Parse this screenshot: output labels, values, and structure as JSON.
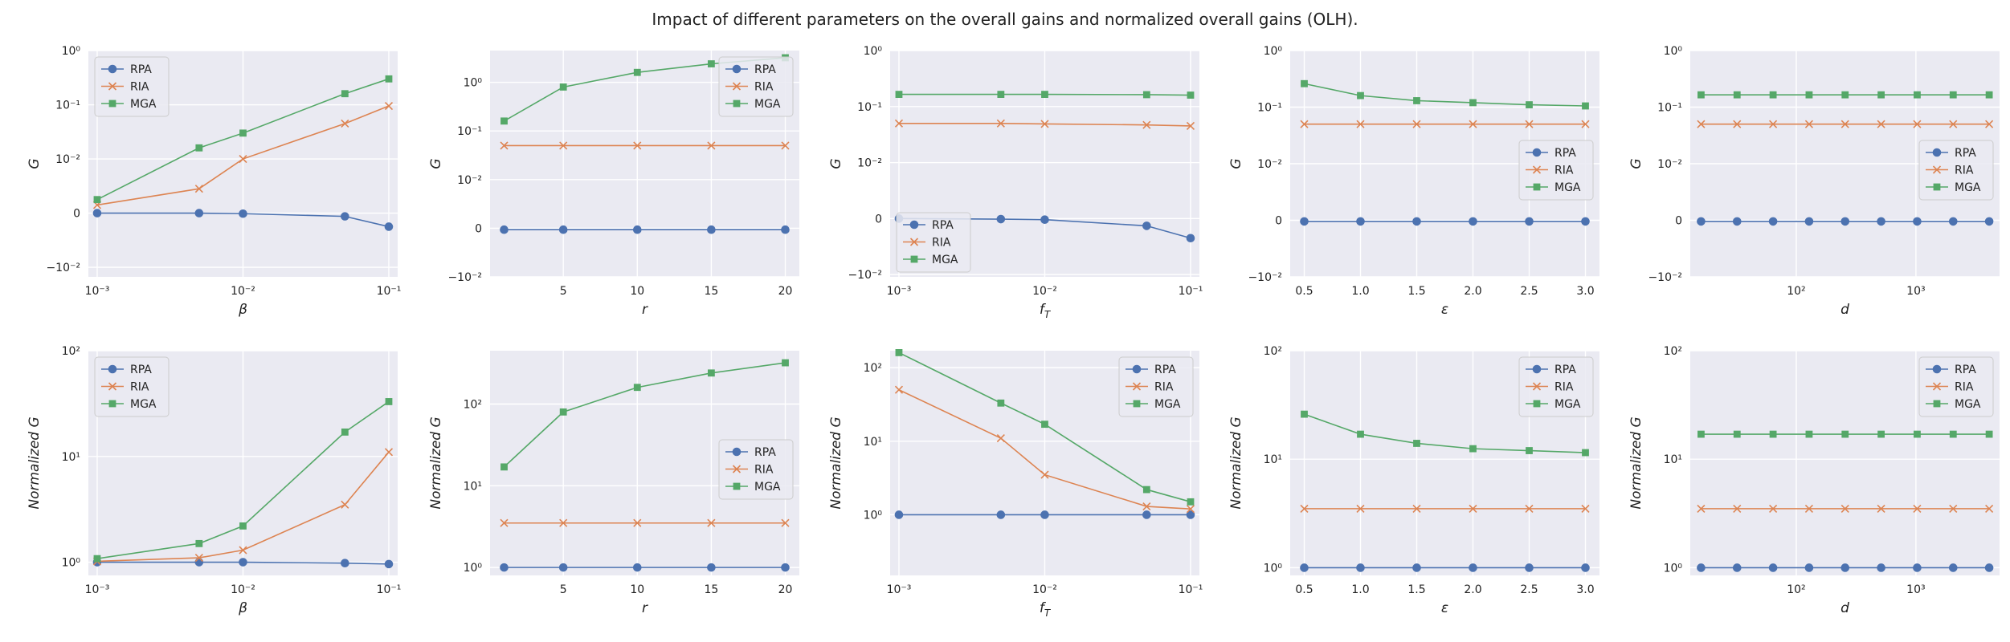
{
  "figure_title": "Impact of different parameters on the overall gains and normalized overall gains (OLH).",
  "colors": {
    "RPA": "#4c72b0",
    "RIA": "#dd8452",
    "MGA": "#55a868"
  },
  "chart_data": [
    {
      "type": "line",
      "xscale": "log",
      "yscale": "symlog",
      "xlabel": "β",
      "ylabel": "G",
      "x": [
        0.001,
        0.005,
        0.01,
        0.05,
        0.1
      ],
      "xticks": [
        0.001,
        0.01,
        0.1
      ],
      "xticklabels": [
        "10⁻³",
        "10⁻²",
        "10⁻¹"
      ],
      "xlim": [
        0.00087,
        0.115
      ],
      "yticks": [
        -0.01,
        0,
        0.01,
        0.1,
        1
      ],
      "yticklabels": [
        "−10⁻²",
        "0",
        "10⁻²",
        "10⁻¹",
        "10⁰"
      ],
      "ylim": [
        -0.015,
        1.0
      ],
      "legend": "upper left",
      "series": [
        {
          "name": "RPA",
          "marker": "circle",
          "values": [
            0.0,
            0.0,
            -0.0001,
            -0.0006,
            -0.0025
          ]
        },
        {
          "name": "RIA",
          "marker": "x",
          "values": [
            0.0015,
            0.0045,
            0.01,
            0.045,
            0.095
          ]
        },
        {
          "name": "MGA",
          "marker": "square",
          "values": [
            0.0025,
            0.016,
            0.03,
            0.16,
            0.3
          ]
        }
      ]
    },
    {
      "type": "line",
      "xscale": "linear",
      "yscale": "symlog",
      "xlabel": "r",
      "ylabel": "G",
      "x": [
        1,
        5,
        10,
        15,
        20
      ],
      "xticks": [
        5,
        10,
        15,
        20
      ],
      "xticklabels": [
        "5",
        "10",
        "15",
        "20"
      ],
      "xlim": [
        0.05,
        20.95
      ],
      "yticks": [
        -0.01,
        0,
        0.01,
        0.1,
        1
      ],
      "yticklabels": [
        "−10⁻²",
        "0",
        "10⁻²",
        "10⁻¹",
        "10⁰"
      ],
      "ylim": [
        -0.01,
        4.5
      ],
      "legend": "upper right",
      "series": [
        {
          "name": "RPA",
          "marker": "circle",
          "values": [
            -0.0003,
            -0.0003,
            -0.0003,
            -0.0003,
            -0.0003
          ]
        },
        {
          "name": "RIA",
          "marker": "x",
          "values": [
            0.05,
            0.05,
            0.05,
            0.05,
            0.05
          ]
        },
        {
          "name": "MGA",
          "marker": "square",
          "values": [
            0.16,
            0.8,
            1.6,
            2.4,
            3.2
          ]
        }
      ]
    },
    {
      "type": "line",
      "xscale": "log",
      "yscale": "symlog",
      "xlabel": "f_T",
      "ylabel": "G",
      "x": [
        0.001,
        0.005,
        0.01,
        0.05,
        0.1
      ],
      "xticks": [
        0.001,
        0.01,
        0.1
      ],
      "xticklabels": [
        "10⁻³",
        "10⁻²",
        "10⁻¹"
      ],
      "xlim": [
        0.00087,
        0.115
      ],
      "yticks": [
        -0.01,
        0,
        0.01,
        0.1,
        1
      ],
      "yticklabels": [
        "−10⁻²",
        "0",
        "10⁻²",
        "10⁻¹",
        "10⁰"
      ],
      "ylim": [
        -0.011,
        1.0
      ],
      "legend": "lower left",
      "series": [
        {
          "name": "RPA",
          "marker": "circle",
          "values": [
            0.0,
            -0.0001,
            -0.0002,
            -0.0013,
            -0.0035
          ]
        },
        {
          "name": "RIA",
          "marker": "x",
          "values": [
            0.05,
            0.05,
            0.049,
            0.047,
            0.045
          ]
        },
        {
          "name": "MGA",
          "marker": "square",
          "values": [
            0.165,
            0.165,
            0.165,
            0.163,
            0.16
          ]
        }
      ]
    },
    {
      "type": "line",
      "xscale": "linear",
      "yscale": "symlog",
      "xlabel": "ε",
      "ylabel": "G",
      "x": [
        0.5,
        1.0,
        1.5,
        2.0,
        2.5,
        3.0
      ],
      "xticks": [
        0.5,
        1.0,
        1.5,
        2.0,
        2.5,
        3.0
      ],
      "xticklabels": [
        "0.5",
        "1.0",
        "1.5",
        "2.0",
        "2.5",
        "3.0"
      ],
      "xlim": [
        0.375,
        3.125
      ],
      "yticks": [
        -0.01,
        0,
        0.01,
        0.1,
        1
      ],
      "yticklabels": [
        "−10⁻²",
        "0",
        "10⁻²",
        "10⁻¹",
        "10⁰"
      ],
      "ylim": [
        -0.01,
        1.0
      ],
      "legend": "center right",
      "series": [
        {
          "name": "RPA",
          "marker": "circle",
          "values": [
            -0.0002,
            -0.0002,
            -0.0002,
            -0.0002,
            -0.0002,
            -0.0002
          ]
        },
        {
          "name": "RIA",
          "marker": "x",
          "values": [
            0.05,
            0.05,
            0.05,
            0.05,
            0.05,
            0.05
          ]
        },
        {
          "name": "MGA",
          "marker": "square",
          "values": [
            0.26,
            0.16,
            0.13,
            0.12,
            0.11,
            0.105
          ]
        }
      ]
    },
    {
      "type": "line",
      "xscale": "log",
      "yscale": "symlog",
      "xlabel": "d",
      "ylabel": "G",
      "x": [
        16,
        32,
        64,
        128,
        256,
        512,
        1024,
        2048,
        4096
      ],
      "xticks": [
        100,
        1000
      ],
      "xticklabels": [
        "10²",
        "10³"
      ],
      "xlim": [
        13,
        5000
      ],
      "yticks": [
        -0.01,
        0,
        0.01,
        0.1,
        1
      ],
      "yticklabels": [
        "−10⁻²",
        "0",
        "10⁻²",
        "10⁻¹",
        "10⁰"
      ],
      "ylim": [
        -0.01,
        1.0
      ],
      "legend": "center right",
      "series": [
        {
          "name": "RPA",
          "marker": "circle",
          "values": [
            -0.0002,
            -0.0002,
            -0.0002,
            -0.0002,
            -0.0002,
            -0.0002,
            -0.0002,
            -0.0002,
            -0.0002
          ]
        },
        {
          "name": "RIA",
          "marker": "x",
          "values": [
            0.05,
            0.05,
            0.05,
            0.05,
            0.05,
            0.05,
            0.05,
            0.05,
            0.05
          ]
        },
        {
          "name": "MGA",
          "marker": "square",
          "values": [
            0.165,
            0.165,
            0.165,
            0.165,
            0.165,
            0.165,
            0.165,
            0.165,
            0.165
          ]
        }
      ]
    },
    {
      "type": "line",
      "xscale": "log",
      "yscale": "log",
      "xlabel": "β",
      "ylabel": "Normalized G",
      "x": [
        0.001,
        0.005,
        0.01,
        0.05,
        0.1
      ],
      "xticks": [
        0.001,
        0.01,
        0.1
      ],
      "xticklabels": [
        "10⁻³",
        "10⁻²",
        "10⁻¹"
      ],
      "xlim": [
        0.00087,
        0.115
      ],
      "yticks": [
        1,
        10,
        100
      ],
      "yticklabels": [
        "10⁰",
        "10¹",
        "10²"
      ],
      "ylim": [
        0.75,
        100
      ],
      "legend": "upper left",
      "series": [
        {
          "name": "RPA",
          "marker": "circle",
          "values": [
            1.0,
            1.0,
            1.0,
            0.98,
            0.96
          ]
        },
        {
          "name": "RIA",
          "marker": "x",
          "values": [
            1.02,
            1.1,
            1.3,
            3.5,
            11
          ]
        },
        {
          "name": "MGA",
          "marker": "square",
          "values": [
            1.08,
            1.5,
            2.2,
            17,
            33
          ]
        }
      ]
    },
    {
      "type": "line",
      "xscale": "linear",
      "yscale": "log",
      "xlabel": "r",
      "ylabel": "Normalized G",
      "x": [
        1,
        5,
        10,
        15,
        20
      ],
      "xticks": [
        5,
        10,
        15,
        20
      ],
      "xticklabels": [
        "5",
        "10",
        "15",
        "20"
      ],
      "xlim": [
        0.05,
        20.95
      ],
      "yticks": [
        1,
        10,
        100
      ],
      "yticklabels": [
        "10⁰",
        "10¹",
        "10²"
      ],
      "ylim": [
        0.8,
        450
      ],
      "legend": "center right",
      "series": [
        {
          "name": "RPA",
          "marker": "circle",
          "values": [
            1,
            1,
            1,
            1,
            1
          ]
        },
        {
          "name": "RIA",
          "marker": "x",
          "values": [
            3.5,
            3.5,
            3.5,
            3.5,
            3.5
          ]
        },
        {
          "name": "MGA",
          "marker": "square",
          "values": [
            17,
            80,
            160,
            240,
            320
          ]
        }
      ]
    },
    {
      "type": "line",
      "xscale": "log",
      "yscale": "log",
      "xlabel": "f_T",
      "ylabel": "Normalized G",
      "x": [
        0.001,
        0.005,
        0.01,
        0.05,
        0.1
      ],
      "xticks": [
        0.001,
        0.01,
        0.1
      ],
      "xticklabels": [
        "10⁻³",
        "10⁻²",
        "10⁻¹"
      ],
      "xlim": [
        0.00087,
        0.115
      ],
      "yticks": [
        1,
        10,
        100
      ],
      "yticklabels": [
        "10⁰",
        "10¹",
        "10²"
      ],
      "ylim": [
        0.15,
        170
      ],
      "legend": "upper right",
      "series": [
        {
          "name": "RPA",
          "marker": "circle",
          "values": [
            1,
            1,
            1,
            1,
            1
          ]
        },
        {
          "name": "RIA",
          "marker": "x",
          "values": [
            50,
            11,
            3.5,
            1.3,
            1.2
          ]
        },
        {
          "name": "MGA",
          "marker": "square",
          "values": [
            160,
            33,
            17,
            2.2,
            1.5
          ]
        }
      ]
    },
    {
      "type": "line",
      "xscale": "linear",
      "yscale": "log",
      "xlabel": "ε",
      "ylabel": "Normalized G",
      "x": [
        0.5,
        1.0,
        1.5,
        2.0,
        2.5,
        3.0
      ],
      "xticks": [
        0.5,
        1.0,
        1.5,
        2.0,
        2.5,
        3.0
      ],
      "xticklabels": [
        "0.5",
        "1.0",
        "1.5",
        "2.0",
        "2.5",
        "3.0"
      ],
      "xlim": [
        0.375,
        3.125
      ],
      "yticks": [
        1,
        10,
        100
      ],
      "yticklabels": [
        "10⁰",
        "10¹",
        "10²"
      ],
      "ylim": [
        0.85,
        100
      ],
      "legend": "upper right",
      "series": [
        {
          "name": "RPA",
          "marker": "circle",
          "values": [
            1,
            1,
            1,
            1,
            1,
            1
          ]
        },
        {
          "name": "RIA",
          "marker": "x",
          "values": [
            3.5,
            3.5,
            3.5,
            3.5,
            3.5,
            3.5
          ]
        },
        {
          "name": "MGA",
          "marker": "square",
          "values": [
            26,
            17,
            14,
            12.5,
            12,
            11.5
          ]
        }
      ]
    },
    {
      "type": "line",
      "xscale": "log",
      "yscale": "log",
      "xlabel": "d",
      "ylabel": "Normalized G",
      "x": [
        16,
        32,
        64,
        128,
        256,
        512,
        1024,
        2048,
        4096
      ],
      "xticks": [
        100,
        1000
      ],
      "xticklabels": [
        "10²",
        "10³"
      ],
      "xlim": [
        13,
        5000
      ],
      "yticks": [
        1,
        10,
        100
      ],
      "yticklabels": [
        "10⁰",
        "10¹",
        "10²"
      ],
      "ylim": [
        0.85,
        100
      ],
      "legend": "upper right",
      "series": [
        {
          "name": "RPA",
          "marker": "circle",
          "values": [
            1,
            1,
            1,
            1,
            1,
            1,
            1,
            1,
            1
          ]
        },
        {
          "name": "RIA",
          "marker": "x",
          "values": [
            3.5,
            3.5,
            3.5,
            3.5,
            3.5,
            3.5,
            3.5,
            3.5,
            3.5
          ]
        },
        {
          "name": "MGA",
          "marker": "square",
          "values": [
            17,
            17,
            17,
            17,
            17,
            17,
            17,
            17,
            17
          ]
        }
      ]
    }
  ]
}
